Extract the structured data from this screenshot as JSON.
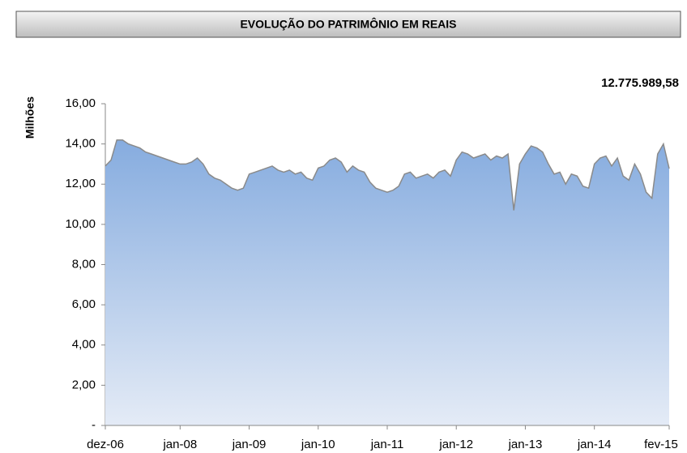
{
  "chart_data": {
    "type": "area",
    "title": "EVOLUÇÃO DO PATRIMÔNIO EM REAIS",
    "ylabel": "Milhões",
    "annotation": "12.775.989,58",
    "x": [
      "2006-12",
      "2007-01",
      "2007-02",
      "2007-03",
      "2007-04",
      "2007-05",
      "2007-06",
      "2007-07",
      "2007-08",
      "2007-09",
      "2007-10",
      "2007-11",
      "2007-12",
      "2008-01",
      "2008-02",
      "2008-03",
      "2008-04",
      "2008-05",
      "2008-06",
      "2008-07",
      "2008-08",
      "2008-09",
      "2008-10",
      "2008-11",
      "2008-12",
      "2009-01",
      "2009-02",
      "2009-03",
      "2009-04",
      "2009-05",
      "2009-06",
      "2009-07",
      "2009-08",
      "2009-09",
      "2009-10",
      "2009-11",
      "2009-12",
      "2010-01",
      "2010-02",
      "2010-03",
      "2010-04",
      "2010-05",
      "2010-06",
      "2010-07",
      "2010-08",
      "2010-09",
      "2010-10",
      "2010-11",
      "2010-12",
      "2011-01",
      "2011-02",
      "2011-03",
      "2011-04",
      "2011-05",
      "2011-06",
      "2011-07",
      "2011-08",
      "2011-09",
      "2011-10",
      "2011-11",
      "2011-12",
      "2012-01",
      "2012-02",
      "2012-03",
      "2012-04",
      "2012-05",
      "2012-06",
      "2012-07",
      "2012-08",
      "2012-09",
      "2012-10",
      "2012-11",
      "2012-12",
      "2013-01",
      "2013-02",
      "2013-03",
      "2013-04",
      "2013-05",
      "2013-06",
      "2013-07",
      "2013-08",
      "2013-09",
      "2013-10",
      "2013-11",
      "2013-12",
      "2014-01",
      "2014-02",
      "2014-03",
      "2014-04",
      "2014-05",
      "2014-06",
      "2014-07",
      "2014-08",
      "2014-09",
      "2014-10",
      "2014-11",
      "2014-12",
      "2015-01",
      "2015-02"
    ],
    "series": [
      {
        "name": "Patrimônio",
        "color": "#8a8a8a",
        "fill_top": "#86acdf",
        "fill_bottom": "#e4ebf6",
        "values": [
          12.9,
          13.2,
          14.2,
          14.2,
          14.0,
          13.9,
          13.8,
          13.6,
          13.5,
          13.4,
          13.3,
          13.2,
          13.1,
          13.0,
          13.0,
          13.1,
          13.3,
          13.0,
          12.5,
          12.3,
          12.2,
          12.0,
          11.8,
          11.7,
          11.8,
          12.5,
          12.6,
          12.7,
          12.8,
          12.9,
          12.7,
          12.6,
          12.7,
          12.5,
          12.6,
          12.3,
          12.2,
          12.8,
          12.9,
          13.2,
          13.3,
          13.1,
          12.6,
          12.9,
          12.7,
          12.6,
          12.1,
          11.8,
          11.7,
          11.6,
          11.7,
          11.9,
          12.5,
          12.6,
          12.3,
          12.4,
          12.5,
          12.3,
          12.6,
          12.7,
          12.4,
          13.2,
          13.6,
          13.5,
          13.3,
          13.4,
          13.5,
          13.2,
          13.4,
          13.3,
          13.5,
          10.7,
          13.0,
          13.5,
          13.9,
          13.8,
          13.6,
          13.0,
          12.5,
          12.6,
          12.0,
          12.5,
          12.4,
          11.9,
          11.8,
          13.0,
          13.3,
          13.4,
          12.9,
          13.3,
          12.4,
          12.2,
          13.0,
          12.5,
          11.6,
          11.3,
          13.5,
          14.0,
          12.77598958
        ]
      }
    ],
    "xlim": [
      "2006-12",
      "2015-02"
    ],
    "xticks": [
      {
        "value": "2006-12",
        "label": "dez-06"
      },
      {
        "value": "2008-01",
        "label": "jan-08"
      },
      {
        "value": "2009-01",
        "label": "jan-09"
      },
      {
        "value": "2010-01",
        "label": "jan-10"
      },
      {
        "value": "2011-01",
        "label": "jan-11"
      },
      {
        "value": "2012-01",
        "label": "jan-12"
      },
      {
        "value": "2013-01",
        "label": "jan-13"
      },
      {
        "value": "2014-01",
        "label": "jan-14"
      },
      {
        "value": "2015-02",
        "label": "fev-15"
      }
    ],
    "ylim": [
      0,
      16
    ],
    "yticks": [
      {
        "value": 0,
        "label": "-"
      },
      {
        "value": 2,
        "label": "2,00"
      },
      {
        "value": 4,
        "label": "4,00"
      },
      {
        "value": 6,
        "label": "6,00"
      },
      {
        "value": 8,
        "label": "8,00"
      },
      {
        "value": 10,
        "label": "10,00"
      },
      {
        "value": 12,
        "label": "12,00"
      },
      {
        "value": 14,
        "label": "14,00"
      },
      {
        "value": 16,
        "label": "16,00"
      }
    ]
  }
}
